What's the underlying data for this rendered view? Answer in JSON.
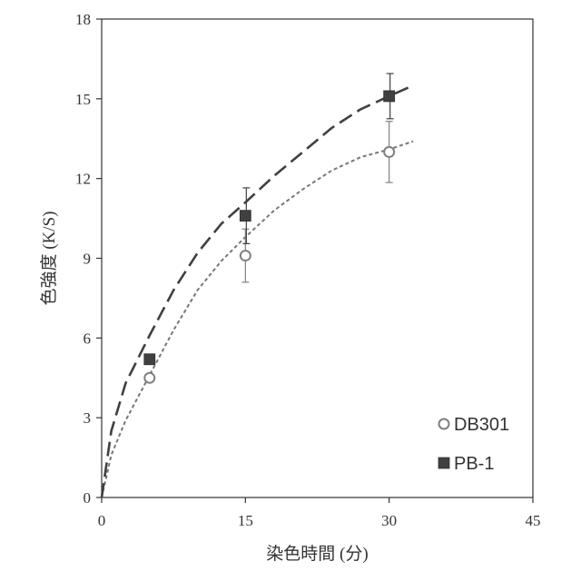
{
  "chart_data": {
    "type": "scatter",
    "xlabel": "染色時間 (分)",
    "ylabel": "色強度 (K/S)",
    "xlim": [
      0,
      45
    ],
    "ylim": [
      0,
      18
    ],
    "xticks": [
      0,
      15,
      30,
      45
    ],
    "yticks": [
      0,
      3,
      6,
      9,
      12,
      15,
      18
    ],
    "grid": false,
    "legend_position": "bottom-right",
    "series": [
      {
        "name": "DB301",
        "marker": "open-circle",
        "color": "#808080",
        "x": [
          5,
          15,
          30
        ],
        "y": [
          4.5,
          9.1,
          13.0
        ],
        "error": [
          0.0,
          1.0,
          1.15
        ],
        "trendline": {
          "style": "short-dash",
          "color": "#777777",
          "x": [
            0,
            1,
            2.5,
            5,
            7.5,
            10,
            12.5,
            15,
            18,
            21,
            24,
            27,
            30,
            32.5
          ],
          "y": [
            0,
            1.6,
            2.9,
            4.6,
            6.3,
            7.8,
            8.9,
            9.8,
            10.8,
            11.6,
            12.3,
            12.8,
            13.1,
            13.4
          ]
        }
      },
      {
        "name": "PB-1",
        "marker": "filled-square",
        "color": "#404040",
        "x": [
          5,
          15,
          30
        ],
        "y": [
          5.2,
          10.6,
          15.1
        ],
        "error": [
          0.0,
          1.05,
          0.85
        ],
        "trendline": {
          "style": "long-dash",
          "color": "#404040",
          "x": [
            0,
            1,
            2.5,
            5,
            7.5,
            10,
            12.5,
            15,
            18,
            21,
            24,
            27,
            30,
            32.5
          ],
          "y": [
            0,
            2.5,
            4.3,
            6.1,
            7.8,
            9.2,
            10.3,
            11.1,
            12.1,
            13.0,
            13.9,
            14.6,
            15.1,
            15.5
          ]
        }
      }
    ]
  }
}
